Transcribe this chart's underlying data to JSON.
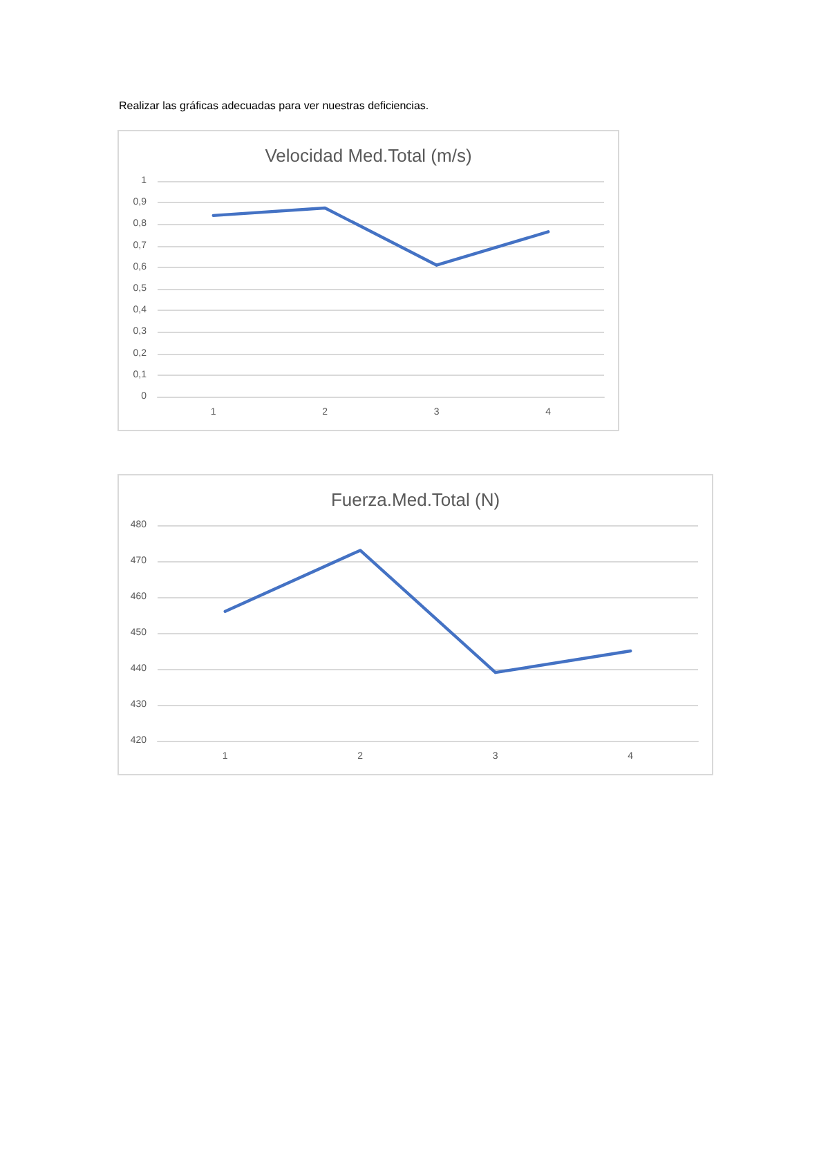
{
  "chart_data": [
    {
      "type": "line",
      "title": "Velocidad Med.Total (m/s)",
      "annotations": [
        "Realizar las gráficas adecuadas para ver nuestras deficiencias."
      ],
      "categories": [
        "1",
        "2",
        "3",
        "4"
      ],
      "series": [
        {
          "color": "#4472c4",
          "values": [
            0.84,
            0.875,
            0.61,
            0.765
          ]
        }
      ],
      "ylim": [
        0,
        1
      ],
      "yticks": [
        0,
        {
          "value": 0.1,
          "label": "0,1"
        },
        {
          "value": 0.2,
          "label": "0,2"
        },
        {
          "value": 0.3,
          "label": "0,3"
        },
        {
          "value": 0.4,
          "label": "0,4"
        },
        {
          "value": 0.5,
          "label": "0,5"
        },
        {
          "value": 0.6,
          "label": "0,6"
        },
        {
          "value": 0.7,
          "label": "0,7"
        },
        {
          "value": 0.8,
          "label": "0,8"
        },
        {
          "value": 0.9,
          "label": "0,9"
        },
        1
      ],
      "grid": "y",
      "marker": "none",
      "line_style": "solid"
    },
    {
      "type": "line",
      "title": "Fuerza.Med.Total (N)",
      "categories": [
        "1",
        "2",
        "3",
        "4"
      ],
      "series": [
        {
          "color": "#4472c4",
          "values": [
            456,
            473,
            439,
            445
          ]
        }
      ],
      "ylim": [
        420,
        480
      ],
      "yticks": [
        420,
        430,
        440,
        450,
        460,
        470,
        480
      ],
      "grid": "y",
      "marker": "none",
      "line_style": "solid"
    }
  ]
}
